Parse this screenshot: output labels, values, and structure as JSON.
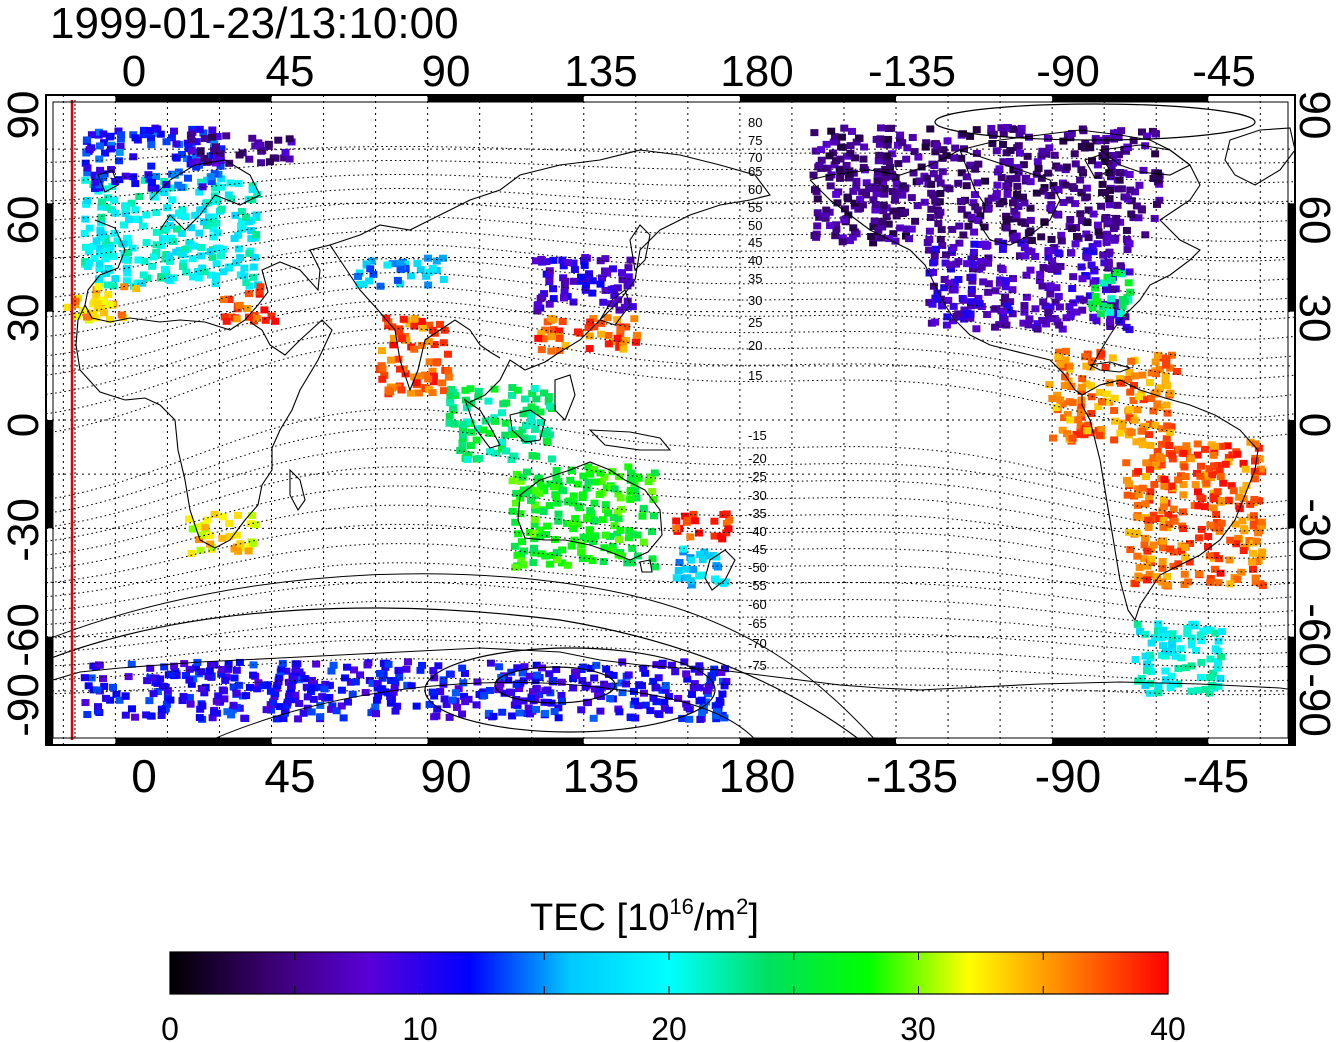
{
  "timestamp": "1999-01-23/13:10:00",
  "axes": {
    "top_lon_labels": [
      "0",
      "45",
      "90",
      "135",
      "180",
      "-135",
      "-90",
      "-45"
    ],
    "bottom_lon_labels": [
      "0",
      "45",
      "90",
      "135",
      "180",
      "-135",
      "-90",
      "-45"
    ],
    "left_lat_labels": [
      "90",
      "60",
      "30",
      "0",
      "-30",
      "-60",
      "-90"
    ],
    "right_lat_labels": [
      "90",
      "60",
      "30",
      "0",
      "-30",
      "-60",
      "-90"
    ],
    "lon_range": [
      -20,
      340
    ],
    "lat_range": [
      -90,
      90
    ],
    "grid": true
  },
  "contour_labels": [
    "80",
    "75",
    "70",
    "65",
    "60",
    "55",
    "50",
    "45",
    "40",
    "35",
    "30",
    "25",
    "20",
    "15",
    "-15",
    "-20",
    "-25",
    "-30",
    "-35",
    "-40",
    "-45",
    "-50",
    "-55",
    "-60",
    "-65",
    "-70",
    "-75"
  ],
  "colorbar": {
    "title": "TEC  [10",
    "title_exp": "16",
    "title_unit": "/m",
    "title_unit_exp": "2",
    "title_close": "]",
    "tick_labels": [
      "0",
      "10",
      "20",
      "30",
      "40"
    ],
    "range": [
      0,
      40
    ],
    "colormap": [
      "#000000",
      "#3a0070",
      "#5a00d8",
      "#0000ff",
      "#00c8ff",
      "#00ffff",
      "#00e060",
      "#00ff00",
      "#ffff00",
      "#ff8000",
      "#ff0000"
    ]
  },
  "terminator_color": "#e00000",
  "chart_data": {
    "type": "scatter",
    "x_label": "",
    "y_label": "",
    "value_label": "TEC [10^16/m^2]",
    "regions": [
      {
        "lon": [
          -10,
          40
        ],
        "lat": [
          38,
          68
        ],
        "tec": 20
      },
      {
        "lon": [
          -10,
          30
        ],
        "lat": [
          65,
          82
        ],
        "tec": 12
      },
      {
        "lon": [
          20,
          50
        ],
        "lat": [
          72,
          80
        ],
        "tec": 6
      },
      {
        "lon": [
          -15,
          5
        ],
        "lat": [
          28,
          38
        ],
        "tec": 34
      },
      {
        "lon": [
          30,
          45
        ],
        "lat": [
          28,
          38
        ],
        "tec": 38
      },
      {
        "lon": [
          68,
          95
        ],
        "lat": [
          38,
          46
        ],
        "tec": 16
      },
      {
        "lon": [
          75,
          95
        ],
        "lat": [
          8,
          30
        ],
        "tec": 37
      },
      {
        "lon": [
          95,
          125
        ],
        "lat": [
          -10,
          10
        ],
        "tec": 24
      },
      {
        "lon": [
          120,
          148
        ],
        "lat": [
          30,
          46
        ],
        "tec": 9
      },
      {
        "lon": [
          120,
          150
        ],
        "lat": [
          20,
          30
        ],
        "tec": 37
      },
      {
        "lon": [
          113,
          155
        ],
        "lat": [
          -40,
          -12
        ],
        "tec": 27
      },
      {
        "lon": [
          160,
          175
        ],
        "lat": [
          -45,
          -34
        ],
        "tec": 17
      },
      {
        "lon": [
          160,
          178
        ],
        "lat": [
          -32,
          -25
        ],
        "tec": 39
      },
      {
        "lon": [
          200,
          300
        ],
        "lat": [
          50,
          82
        ],
        "tec": 5
      },
      {
        "lon": [
          232,
          292
        ],
        "lat": [
          26,
          50
        ],
        "tec": 8
      },
      {
        "lon": [
          280,
          292
        ],
        "lat": [
          30,
          42
        ],
        "tec": 24
      },
      {
        "lon": [
          268,
          305
        ],
        "lat": [
          -5,
          20
        ],
        "tec": 36
      },
      {
        "lon": [
          290,
          330
        ],
        "lat": [
          -45,
          -5
        ],
        "tec": 37
      },
      {
        "lon": [
          292,
          318
        ],
        "lat": [
          -75,
          -55
        ],
        "tec": 20
      },
      {
        "lon": [
          -10,
          175
        ],
        "lat": [
          -82,
          -66
        ],
        "tec": 11
      },
      {
        "lon": [
          20,
          40
        ],
        "lat": [
          -36,
          -25
        ],
        "tec": 33
      }
    ]
  }
}
